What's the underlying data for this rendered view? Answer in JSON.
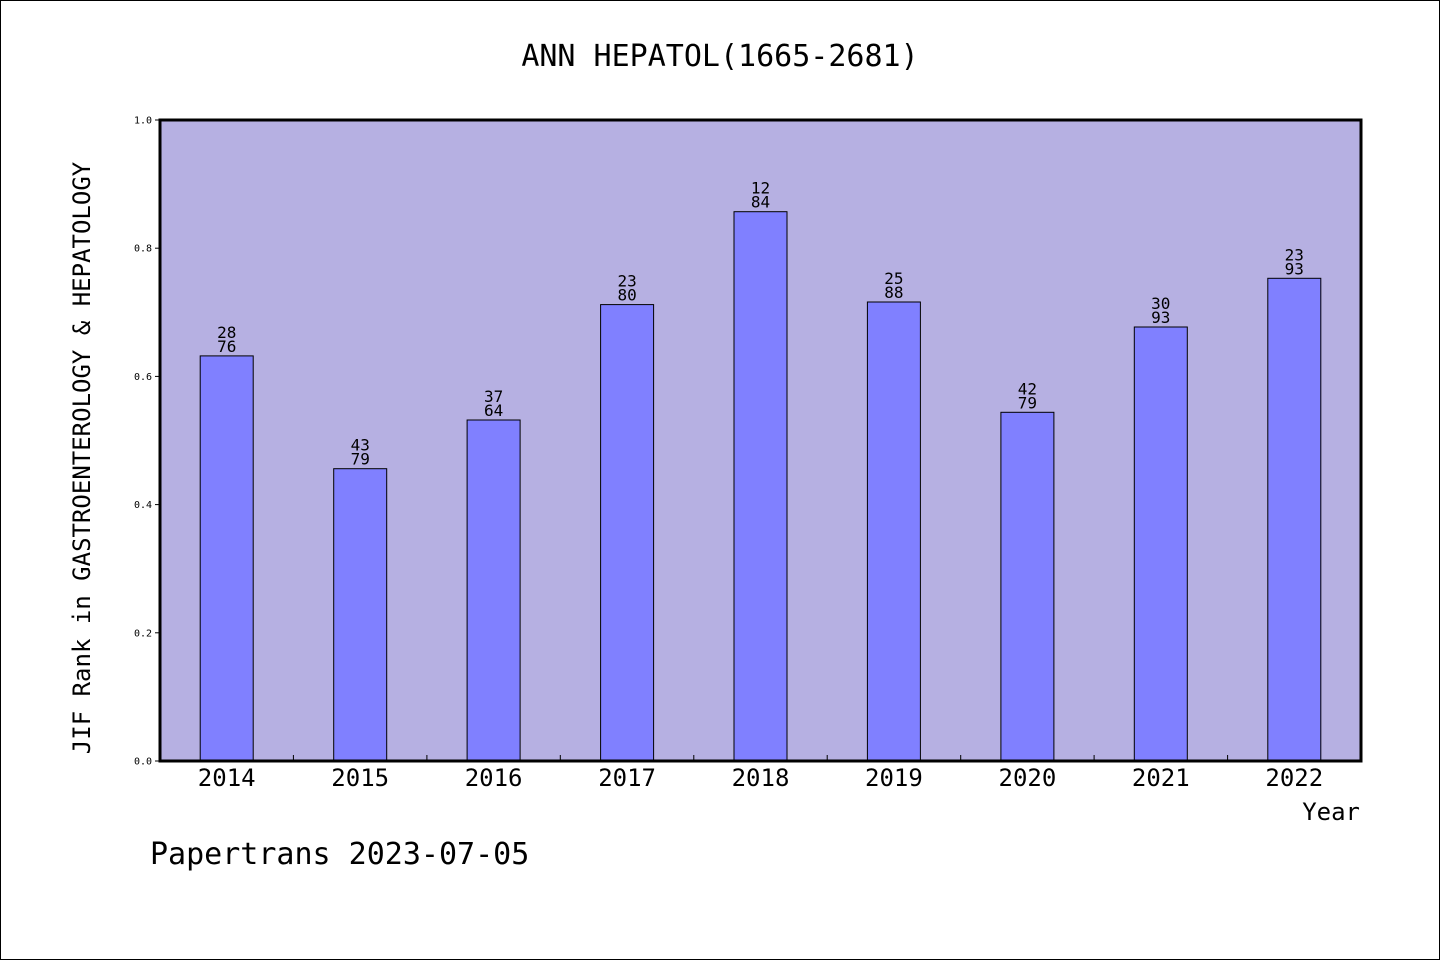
{
  "chart_data": {
    "type": "bar",
    "title": "ANN HEPATOL(1665-2681)",
    "xlabel": "Year",
    "ylabel": "JIF Rank in GASTROENTEROLOGY & HEPATOLOGY",
    "ylim": [
      0,
      1.0
    ],
    "yticks": [
      "0.0",
      "0.2",
      "0.4",
      "0.6",
      "0.8",
      "1.0"
    ],
    "categories": [
      "2014",
      "2015",
      "2016",
      "2017",
      "2018",
      "2019",
      "2020",
      "2021",
      "2022"
    ],
    "values": [
      0.632,
      0.456,
      0.532,
      0.712,
      0.857,
      0.716,
      0.544,
      0.677,
      0.753
    ],
    "bar_labels": [
      [
        "28",
        "76"
      ],
      [
        "43",
        "79"
      ],
      [
        "37",
        "64"
      ],
      [
        "23",
        "80"
      ],
      [
        "12",
        "84"
      ],
      [
        "25",
        "88"
      ],
      [
        "42",
        "79"
      ],
      [
        "30",
        "93"
      ],
      [
        "23",
        "93"
      ]
    ],
    "grid": false,
    "colors": {
      "plot_background": "#b6b0e2",
      "bar_fill": "#8080ff",
      "bar_stroke": "#000000"
    }
  },
  "footer": {
    "text": "Papertrans 2023-07-05"
  }
}
